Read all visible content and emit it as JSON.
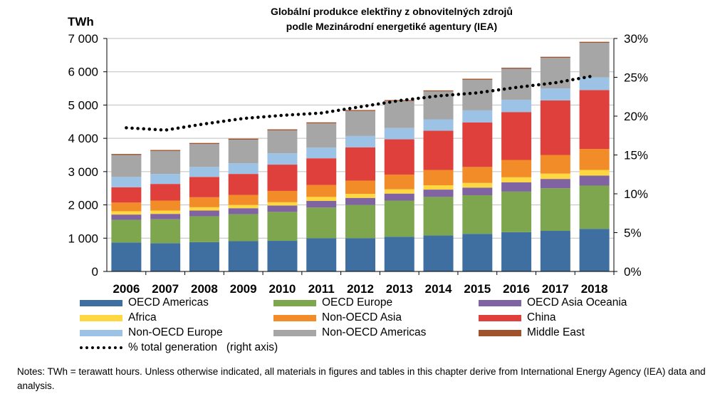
{
  "chart_data": {
    "type": "bar",
    "stacked": true,
    "title_lines": [
      "Globální produkce elektřiny z obnovitelných zdrojů",
      "podle Mezinárodní energetiké agentury (IEA)"
    ],
    "ylabel_left": "TWh",
    "ylim_left": [
      0,
      7000
    ],
    "yticks_left": [
      "0",
      "1 000",
      "2 000",
      "3 000",
      "4 000",
      "5 000",
      "6 000",
      "7 000"
    ],
    "ylim_right": [
      0,
      30
    ],
    "yticks_right": [
      "0%",
      "5%",
      "10%",
      "15%",
      "20%",
      "25%",
      "30%"
    ],
    "grid": "horizontal",
    "categories": [
      "2006",
      "2007",
      "2008",
      "2009",
      "2010",
      "2011",
      "2012",
      "2013",
      "2014",
      "2015",
      "2016",
      "2017",
      "2018"
    ],
    "series": [
      {
        "name": "OECD Americas",
        "color": "#3e6fa0",
        "values": [
          870,
          850,
          880,
          910,
          920,
          1000,
          1000,
          1040,
          1080,
          1130,
          1180,
          1220,
          1280
        ]
      },
      {
        "name": "OECD Europe",
        "color": "#7ea64f",
        "values": [
          680,
          720,
          780,
          810,
          870,
          920,
          1000,
          1090,
          1160,
          1160,
          1220,
          1280,
          1300
        ]
      },
      {
        "name": "OECD Asia Oceania",
        "color": "#8064a2",
        "values": [
          160,
          160,
          170,
          180,
          190,
          200,
          210,
          210,
          220,
          230,
          280,
          280,
          300
        ]
      },
      {
        "name": "Africa",
        "color": "#ffd740",
        "values": [
          100,
          100,
          100,
          100,
          100,
          120,
          120,
          130,
          130,
          140,
          150,
          160,
          170
        ]
      },
      {
        "name": "Non-OECD Asia",
        "color": "#f28c28",
        "values": [
          260,
          300,
          300,
          300,
          340,
          360,
          400,
          440,
          460,
          480,
          520,
          560,
          630
        ]
      },
      {
        "name": "China",
        "color": "#e0403c",
        "values": [
          460,
          500,
          610,
          630,
          790,
          800,
          1000,
          1060,
          1180,
          1340,
          1440,
          1640,
          1770
        ]
      },
      {
        "name": "Non-OECD Europe",
        "color": "#9cc3e6",
        "values": [
          310,
          300,
          300,
          320,
          340,
          320,
          340,
          340,
          340,
          360,
          370,
          360,
          380
        ]
      },
      {
        "name": "Non-OECD Americas",
        "color": "#a6a6a6",
        "values": [
          660,
          690,
          690,
          710,
          690,
          730,
          750,
          810,
          840,
          920,
          930,
          920,
          1040
        ]
      },
      {
        "name": "Middle East",
        "color": "#a0522d",
        "values": [
          30,
          30,
          30,
          30,
          30,
          30,
          30,
          30,
          30,
          30,
          30,
          30,
          30
        ]
      }
    ],
    "line_series": {
      "name": "% total generation   (right axis)",
      "axis": "right",
      "style": "dotted",
      "color": "#000000",
      "values": [
        18.5,
        18.2,
        19.0,
        19.7,
        20.1,
        20.4,
        21.2,
        22.0,
        22.6,
        23.0,
        23.7,
        24.3,
        25.2
      ]
    },
    "legend_placement": "bottom"
  },
  "notes": "Notes: TWh = terawatt hours. Unless otherwise indicated, all materials in figures and tables in this chapter derive from International Energy Agency (IEA) data and analysis."
}
